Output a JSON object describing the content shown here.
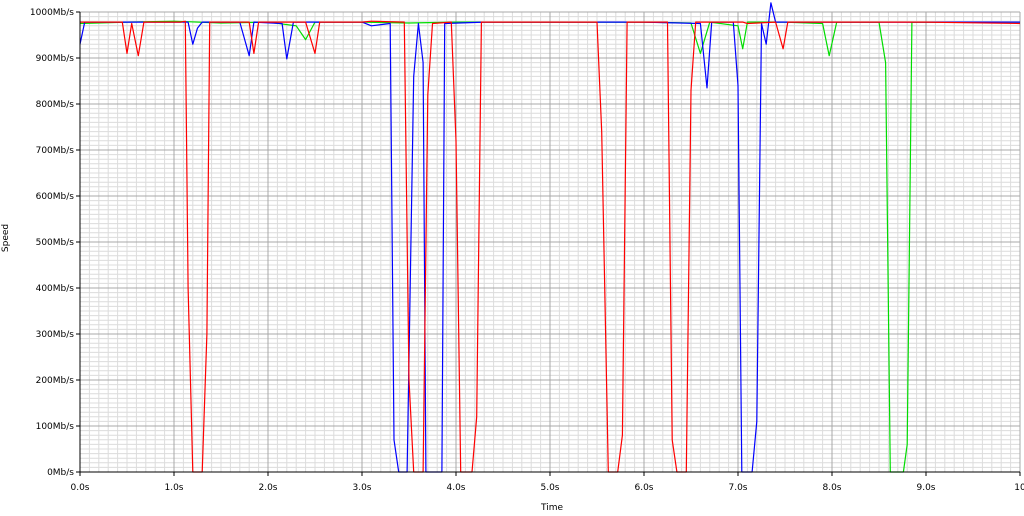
{
  "chart_data": {
    "type": "line",
    "title": "",
    "xlabel": "Time",
    "ylabel": "Speed",
    "xlim": [
      0,
      10
    ],
    "ylim": [
      0,
      1000
    ],
    "x_ticks": [
      "0.0s",
      "1.0s",
      "2.0s",
      "3.0s",
      "4.0s",
      "5.0s",
      "6.0s",
      "7.0s",
      "8.0s",
      "9.0s",
      "10"
    ],
    "y_ticks": [
      "0Mb/s",
      "100Mb/s",
      "200Mb/s",
      "300Mb/s",
      "400Mb/s",
      "500Mb/s",
      "600Mb/s",
      "700Mb/s",
      "800Mb/s",
      "900Mb/s",
      "1000Mb/s"
    ],
    "grid": true,
    "legend": "none",
    "series": [
      {
        "color": "#00dd00",
        "points": [
          [
            0,
            975
          ],
          [
            0.5,
            978
          ],
          [
            1.0,
            980
          ],
          [
            1.5,
            976
          ],
          [
            2.0,
            978
          ],
          [
            2.3,
            970
          ],
          [
            2.4,
            940
          ],
          [
            2.5,
            978
          ],
          [
            3.0,
            978
          ],
          [
            3.5,
            976
          ],
          [
            4.0,
            978
          ],
          [
            4.5,
            978
          ],
          [
            5.0,
            978
          ],
          [
            5.5,
            978
          ],
          [
            6.0,
            978
          ],
          [
            6.5,
            976
          ],
          [
            6.6,
            910
          ],
          [
            6.7,
            978
          ],
          [
            7.0,
            970
          ],
          [
            7.05,
            920
          ],
          [
            7.1,
            978
          ],
          [
            7.5,
            978
          ],
          [
            7.9,
            975
          ],
          [
            7.97,
            905
          ],
          [
            8.05,
            978
          ],
          [
            8.5,
            978
          ],
          [
            8.57,
            890
          ],
          [
            8.62,
            0
          ],
          [
            8.76,
            0
          ],
          [
            8.8,
            60
          ],
          [
            8.85,
            978
          ],
          [
            9.3,
            978
          ],
          [
            10,
            978
          ]
        ]
      },
      {
        "color": "#0000ff",
        "points": [
          [
            0,
            930
          ],
          [
            0.05,
            978
          ],
          [
            0.5,
            978
          ],
          [
            1.0,
            978
          ],
          [
            1.15,
            978
          ],
          [
            1.2,
            930
          ],
          [
            1.25,
            965
          ],
          [
            1.3,
            978
          ],
          [
            1.7,
            978
          ],
          [
            1.8,
            905
          ],
          [
            1.85,
            978
          ],
          [
            2.15,
            975
          ],
          [
            2.2,
            898
          ],
          [
            2.27,
            978
          ],
          [
            3.0,
            978
          ],
          [
            3.1,
            970
          ],
          [
            3.3,
            975
          ],
          [
            3.34,
            70
          ],
          [
            3.39,
            0
          ],
          [
            3.48,
            0
          ],
          [
            3.55,
            860
          ],
          [
            3.6,
            975
          ],
          [
            3.65,
            890
          ],
          [
            3.68,
            0
          ],
          [
            3.85,
            0
          ],
          [
            3.88,
            975
          ],
          [
            4.3,
            978
          ],
          [
            5.0,
            978
          ],
          [
            6.0,
            978
          ],
          [
            6.6,
            975
          ],
          [
            6.67,
            835
          ],
          [
            6.72,
            978
          ],
          [
            6.95,
            978
          ],
          [
            7.0,
            840
          ],
          [
            7.04,
            0
          ],
          [
            7.15,
            0
          ],
          [
            7.2,
            110
          ],
          [
            7.25,
            975
          ],
          [
            7.3,
            930
          ],
          [
            7.35,
            1020
          ],
          [
            7.4,
            978
          ],
          [
            8.0,
            978
          ],
          [
            9.0,
            978
          ],
          [
            10,
            978
          ]
        ]
      },
      {
        "color": "#ff0000",
        "points": [
          [
            0,
            978
          ],
          [
            0.45,
            978
          ],
          [
            0.5,
            910
          ],
          [
            0.55,
            975
          ],
          [
            0.62,
            905
          ],
          [
            0.68,
            978
          ],
          [
            1.0,
            978
          ],
          [
            1.07,
            978
          ],
          [
            1.12,
            980
          ],
          [
            1.15,
            400
          ],
          [
            1.2,
            0
          ],
          [
            1.3,
            0
          ],
          [
            1.35,
            300
          ],
          [
            1.38,
            978
          ],
          [
            1.8,
            978
          ],
          [
            1.85,
            910
          ],
          [
            1.9,
            978
          ],
          [
            2.4,
            978
          ],
          [
            2.5,
            910
          ],
          [
            2.55,
            978
          ],
          [
            3.0,
            978
          ],
          [
            3.1,
            980
          ],
          [
            3.45,
            978
          ],
          [
            3.5,
            200
          ],
          [
            3.55,
            0
          ],
          [
            3.65,
            0
          ],
          [
            3.7,
            820
          ],
          [
            3.75,
            975
          ],
          [
            3.95,
            978
          ],
          [
            4.0,
            720
          ],
          [
            4.05,
            0
          ],
          [
            4.17,
            0
          ],
          [
            4.22,
            120
          ],
          [
            4.27,
            978
          ],
          [
            5.0,
            978
          ],
          [
            5.5,
            978
          ],
          [
            5.55,
            740
          ],
          [
            5.62,
            0
          ],
          [
            5.72,
            0
          ],
          [
            5.77,
            80
          ],
          [
            5.82,
            978
          ],
          [
            6.25,
            978
          ],
          [
            6.3,
            70
          ],
          [
            6.35,
            0
          ],
          [
            6.45,
            0
          ],
          [
            6.5,
            830
          ],
          [
            6.55,
            978
          ],
          [
            7.0,
            978
          ],
          [
            7.05,
            978
          ],
          [
            7.1,
            975
          ],
          [
            7.4,
            978
          ],
          [
            7.48,
            920
          ],
          [
            7.53,
            978
          ],
          [
            8.0,
            978
          ],
          [
            9.0,
            978
          ],
          [
            10,
            975
          ]
        ]
      }
    ]
  }
}
